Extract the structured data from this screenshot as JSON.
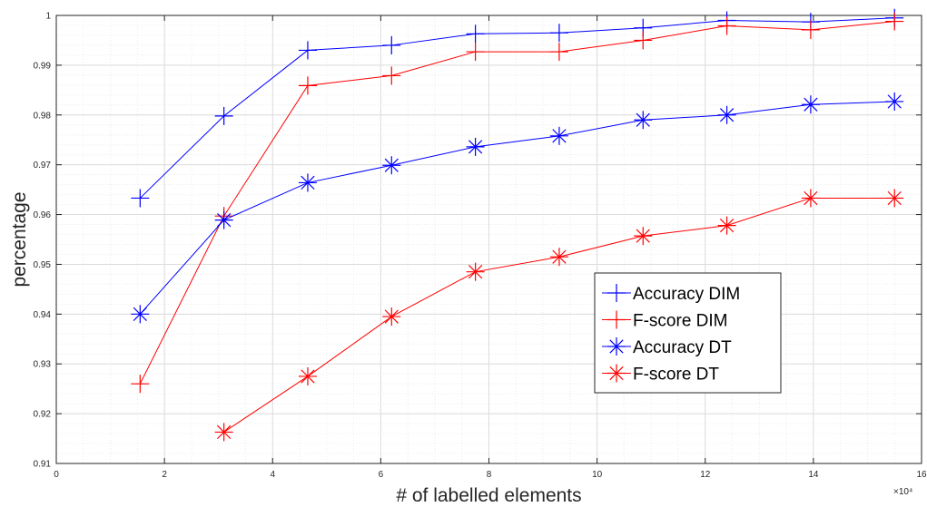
{
  "chart_data": {
    "type": "line",
    "title": "",
    "xlabel": "# of labelled elements",
    "ylabel": "percentage",
    "x_exponent_label": "×10⁴",
    "xlim": [
      0,
      16
    ],
    "ylim": [
      0.91,
      1.0
    ],
    "xticks": [
      0,
      2,
      4,
      6,
      8,
      10,
      12,
      14,
      16
    ],
    "xtick_labels": [
      "0",
      "2",
      "4",
      "6",
      "8",
      "10",
      "12",
      "14",
      "16"
    ],
    "yticks": [
      0.91,
      0.92,
      0.93,
      0.94,
      0.95,
      0.96,
      0.97,
      0.98,
      0.99,
      1.0
    ],
    "ytick_labels": [
      "0.91",
      "0.92",
      "0.93",
      "0.94",
      "0.95",
      "0.96",
      "0.97",
      "0.98",
      "0.99",
      "1"
    ],
    "grid": true,
    "minor_grid": true,
    "legend_position": "bottom-right",
    "series": [
      {
        "name": "Accuracy DIM",
        "color": "#0000ff",
        "marker": "plus",
        "x": [
          1.55,
          3.1,
          4.65,
          6.2,
          7.75,
          9.3,
          10.85,
          12.4,
          13.95,
          15.5
        ],
        "values": [
          0.9633,
          0.9798,
          0.993,
          0.994,
          0.9963,
          0.9965,
          0.9975,
          0.999,
          0.9987,
          0.9995
        ]
      },
      {
        "name": "F-score DIM",
        "color": "#ff0000",
        "marker": "plus",
        "x": [
          1.55,
          3.1,
          4.65,
          6.2,
          7.75,
          9.3,
          10.85,
          12.4,
          13.95,
          15.5
        ],
        "values": [
          0.926,
          0.9597,
          0.9859,
          0.9879,
          0.9927,
          0.9927,
          0.995,
          0.9979,
          0.9971,
          0.9988
        ]
      },
      {
        "name": "Accuracy DT",
        "color": "#0000ff",
        "marker": "asterisk",
        "x": [
          1.55,
          3.1,
          4.65,
          6.2,
          7.75,
          9.3,
          10.85,
          12.4,
          13.95,
          15.5
        ],
        "values": [
          0.94,
          0.9589,
          0.9664,
          0.9699,
          0.9736,
          0.9758,
          0.979,
          0.98,
          0.9821,
          0.9827
        ]
      },
      {
        "name": "F-score DT",
        "color": "#ff0000",
        "marker": "asterisk",
        "x": [
          3.1,
          4.65,
          6.2,
          7.75,
          9.3,
          10.85,
          12.4,
          13.95,
          15.5
        ],
        "values": [
          0.9163,
          0.9275,
          0.9395,
          0.9485,
          0.9515,
          0.9557,
          0.9578,
          0.9633,
          0.9633
        ]
      }
    ]
  }
}
